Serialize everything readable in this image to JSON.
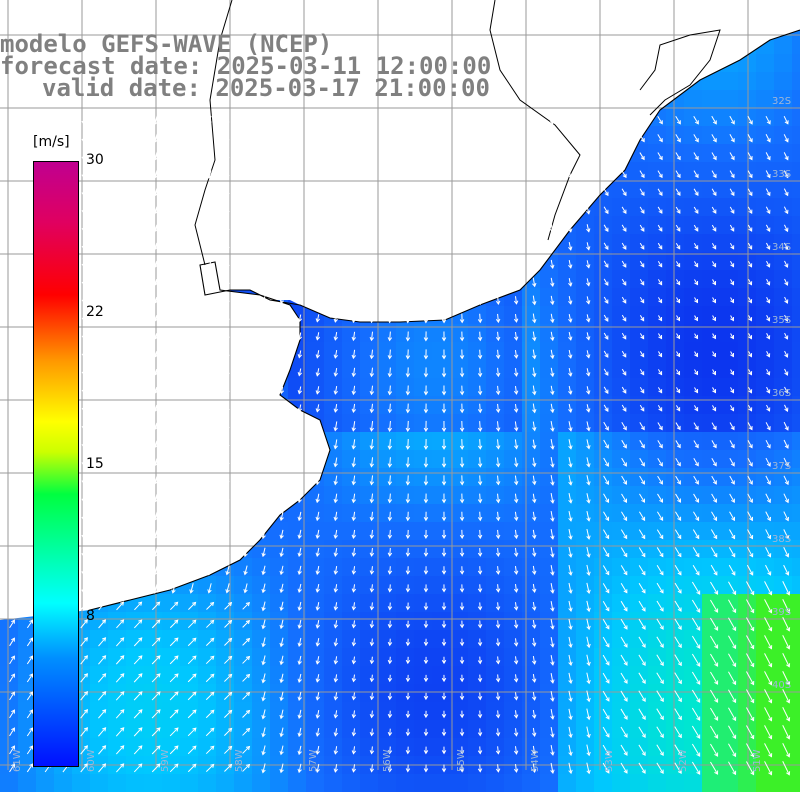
{
  "header": {
    "model_line": "modelo GEFS-WAVE (NCEP)",
    "forecast_line": "forecast date: 2025-03-11 12:00:00",
    "valid_line": "valid date: 2025-03-17 21:00:00"
  },
  "colorbar": {
    "unit": "[m/s]",
    "ticks": [
      "30",
      "22",
      "15",
      "8"
    ],
    "range": [
      0,
      30
    ]
  },
  "map": {
    "lat_labels": [
      "32S",
      "33S",
      "34S",
      "35S",
      "36S",
      "37S",
      "38S",
      "39S",
      "40S"
    ],
    "lon_labels": [
      "61W",
      "60W",
      "59W",
      "58W",
      "57W",
      "56W",
      "55W",
      "54W",
      "53W",
      "52W",
      "51W"
    ],
    "colors": {
      "land": "#ffffff",
      "grid": "#9a9a9a",
      "coast": "#000000",
      "arrow": "#ffffff",
      "deep_blue": "#0a2ee6",
      "cyan": "#00d8ff",
      "green": "#30f030"
    }
  }
}
